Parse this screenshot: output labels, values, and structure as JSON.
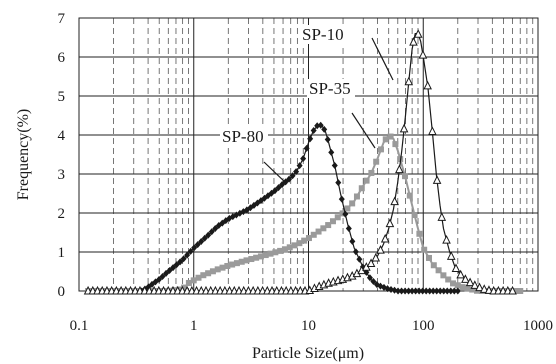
{
  "chart_data": {
    "type": "line",
    "title": "",
    "xlabel": "Particle Size(μm)",
    "ylabel": "Frequency(%)",
    "x_scale": "log",
    "xlim": [
      0.1,
      1000
    ],
    "ylim": [
      0,
      7
    ],
    "x_ticks": [
      "0.1",
      "1",
      "10",
      "100",
      "1000"
    ],
    "y_ticks": [
      "0",
      "1",
      "2",
      "3",
      "4",
      "5",
      "6",
      "7"
    ],
    "grid": {
      "major": true,
      "minor_x": true
    },
    "legend": "none",
    "series": [
      {
        "name": "SP-10",
        "color": "#1a1a1a",
        "marker": "open-triangle",
        "points": [
          [
            0.12,
            0
          ],
          [
            0.2,
            0
          ],
          [
            0.4,
            0
          ],
          [
            0.7,
            0
          ],
          [
            1,
            0
          ],
          [
            2,
            0
          ],
          [
            4,
            0
          ],
          [
            7,
            0
          ],
          [
            10,
            0
          ],
          [
            12,
            0.1
          ],
          [
            15,
            0.2
          ],
          [
            20,
            0.3
          ],
          [
            25,
            0.4
          ],
          [
            30,
            0.55
          ],
          [
            35,
            0.7
          ],
          [
            40,
            0.9
          ],
          [
            45,
            1.2
          ],
          [
            50,
            1.6
          ],
          [
            55,
            2.1
          ],
          [
            60,
            2.8
          ],
          [
            65,
            3.6
          ],
          [
            70,
            4.5
          ],
          [
            75,
            5.4
          ],
          [
            80,
            6.2
          ],
          [
            85,
            6.6
          ],
          [
            90,
            6.6
          ],
          [
            95,
            6.4
          ],
          [
            100,
            6.0
          ],
          [
            110,
            5.2
          ],
          [
            120,
            4.1
          ],
          [
            130,
            3.0
          ],
          [
            140,
            2.2
          ],
          [
            150,
            1.6
          ],
          [
            170,
            1.0
          ],
          [
            190,
            0.6
          ],
          [
            220,
            0.35
          ],
          [
            260,
            0.2
          ],
          [
            300,
            0.1
          ],
          [
            350,
            0.03
          ],
          [
            400,
            0
          ],
          [
            600,
            0
          ]
        ]
      },
      {
        "name": "SP-35",
        "color": "#9a9a9a",
        "marker": "filled-square",
        "points": [
          [
            0.12,
            0
          ],
          [
            0.3,
            0
          ],
          [
            0.6,
            0
          ],
          [
            0.8,
            0.05
          ],
          [
            0.9,
            0.2
          ],
          [
            1.2,
            0.4
          ],
          [
            1.6,
            0.55
          ],
          [
            2,
            0.65
          ],
          [
            3,
            0.8
          ],
          [
            4,
            0.9
          ],
          [
            6,
            1.05
          ],
          [
            8,
            1.2
          ],
          [
            10,
            1.35
          ],
          [
            15,
            1.7
          ],
          [
            20,
            2.0
          ],
          [
            25,
            2.3
          ],
          [
            30,
            2.7
          ],
          [
            35,
            3.0
          ],
          [
            40,
            3.4
          ],
          [
            45,
            3.8
          ],
          [
            50,
            4.0
          ],
          [
            55,
            3.9
          ],
          [
            60,
            3.6
          ],
          [
            70,
            2.9
          ],
          [
            80,
            2.2
          ],
          [
            90,
            1.6
          ],
          [
            100,
            1.1
          ],
          [
            120,
            0.7
          ],
          [
            150,
            0.4
          ],
          [
            180,
            0.2
          ],
          [
            220,
            0.1
          ],
          [
            300,
            0
          ],
          [
            500,
            0
          ],
          [
            700,
            0
          ]
        ]
      },
      {
        "name": "SP-80",
        "color": "#1a1a1a",
        "marker": "filled-diamond",
        "points": [
          [
            0.35,
            0
          ],
          [
            0.4,
            0.1
          ],
          [
            0.5,
            0.3
          ],
          [
            0.6,
            0.5
          ],
          [
            0.8,
            0.8
          ],
          [
            1,
            1.1
          ],
          [
            1.3,
            1.4
          ],
          [
            1.6,
            1.65
          ],
          [
            2,
            1.85
          ],
          [
            3,
            2.1
          ],
          [
            4,
            2.35
          ],
          [
            5,
            2.55
          ],
          [
            6,
            2.75
          ],
          [
            7,
            2.9
          ],
          [
            8,
            3.1
          ],
          [
            9,
            3.4
          ],
          [
            10,
            3.8
          ],
          [
            11,
            4.1
          ],
          [
            12,
            4.25
          ],
          [
            13,
            4.25
          ],
          [
            14,
            4.1
          ],
          [
            15,
            3.8
          ],
          [
            17,
            3.2
          ],
          [
            19,
            2.5
          ],
          [
            22,
            1.7
          ],
          [
            25,
            1.1
          ],
          [
            30,
            0.6
          ],
          [
            35,
            0.3
          ],
          [
            40,
            0.15
          ],
          [
            50,
            0.05
          ],
          [
            60,
            0
          ],
          [
            100,
            0
          ],
          [
            200,
            0
          ]
        ]
      }
    ],
    "annotations": [
      {
        "text": "SP-10",
        "series": "SP-10"
      },
      {
        "text": "SP-35",
        "series": "SP-35"
      },
      {
        "text": "SP-80",
        "series": "SP-80"
      }
    ]
  }
}
